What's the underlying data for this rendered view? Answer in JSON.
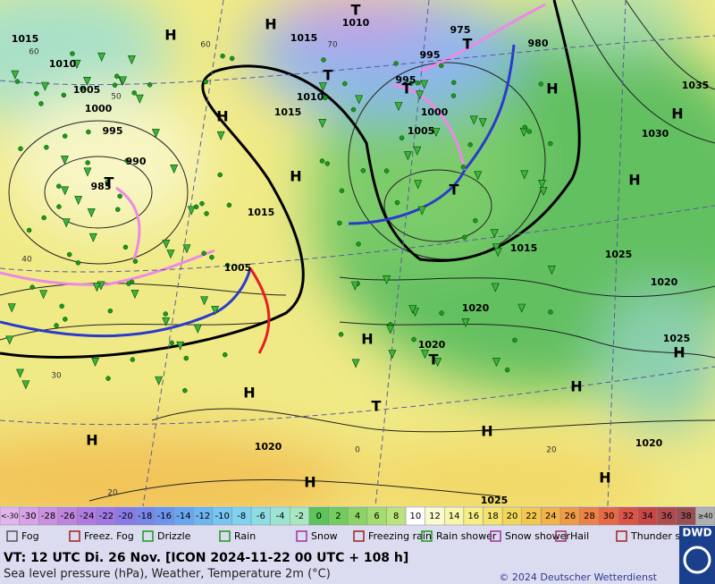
{
  "map": {
    "isobar_labels": [
      1015,
      1010,
      1005,
      1000,
      995,
      990,
      985,
      1010,
      1015,
      1010,
      1015,
      995,
      995,
      1000,
      1005,
      980,
      975,
      1035,
      1030,
      1015,
      1015,
      1025,
      1020,
      1020,
      1020,
      1025,
      1020,
      1025,
      1020,
      1005
    ],
    "highs": [
      "H",
      "H",
      "H",
      "H",
      "H",
      "H",
      "H",
      "H",
      "H",
      "H",
      "H",
      "H",
      "H",
      "H",
      "H"
    ],
    "lows": [
      "T",
      "T",
      "T",
      "T",
      "T",
      "T",
      "T",
      "T"
    ],
    "grid_labels": [
      "60",
      "50",
      "40",
      "30",
      "20",
      "70",
      "60",
      "20",
      "0"
    ]
  },
  "legend": {
    "temperature": {
      "labels": [
        "<-30",
        -30,
        -28,
        -26,
        -24,
        -22,
        -20,
        -18,
        -16,
        -14,
        -12,
        -10,
        -8,
        -6,
        -4,
        -2,
        0,
        2,
        4,
        6,
        8,
        10,
        12,
        14,
        16,
        18,
        20,
        22,
        24,
        26,
        28,
        30,
        32,
        34,
        36,
        38,
        "≥40"
      ],
      "colors": [
        "#e2b6ec",
        "#d7a2e6",
        "#cc92e0",
        "#bf84de",
        "#b07ae0",
        "#9f78e2",
        "#8a7ae6",
        "#7a86ea",
        "#6e95ee",
        "#6aa6f0",
        "#6eb6f2",
        "#78c6f2",
        "#80d2ee",
        "#8edce4",
        "#9ee4d2",
        "#a8e8c0",
        "#5cc45a",
        "#72cc5e",
        "#8cd466",
        "#a4dc70",
        "#bce47c",
        "#ffffff",
        "#fbfbd0",
        "#f8f6aa",
        "#f6ee86",
        "#f4e46c",
        "#f2d85a",
        "#f2c850",
        "#f2b44a",
        "#f09c46",
        "#ec8244",
        "#e66a44",
        "#dc5446",
        "#c84848",
        "#b04c4e",
        "#985054",
        "#b0b0b0"
      ]
    },
    "weather": [
      "Fog",
      "Freez. Fog",
      "Drizzle",
      "Rain",
      "Snow",
      "Freezing rain",
      "Rain shower",
      "Snow shower",
      "Hail",
      "Thunder storm"
    ]
  },
  "footer": {
    "valid_time": "VT: 12 UTC Di.  26 Nov. [ICON 2024-11-22  00 UTC + 108 h]",
    "description": "Sea level pressure (hPa), Weather, Temperature 2m (°C)",
    "copyright": "© 2024 Deutscher Wetterdienst",
    "logo": "DWD"
  }
}
